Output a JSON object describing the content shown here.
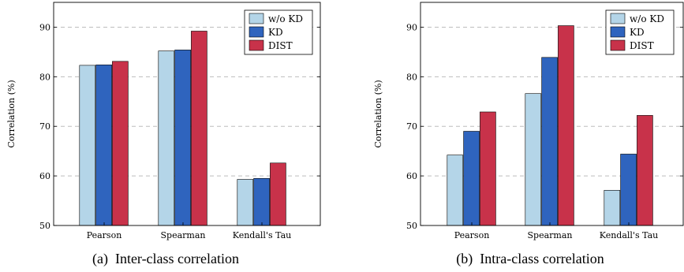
{
  "colors": {
    "w_o_kd": "#b4d5e8",
    "kd": "#2f64be",
    "dist": "#c8324a",
    "grid": "#bdbdbd"
  },
  "chart_data": [
    {
      "type": "bar",
      "caption": "(a)  Inter-class correlation",
      "ylabel": "Correlation (%)",
      "categories": [
        "Pearson",
        "Spearman",
        "Kendall's Tau"
      ],
      "ylim": [
        50,
        95
      ],
      "yticks": [
        50,
        60,
        70,
        80,
        90
      ],
      "grid": true,
      "legend": "top-right",
      "series": [
        {
          "name": "w/o KD",
          "color_key": "w_o_kd",
          "values": [
            82.3,
            85.2,
            59.3
          ]
        },
        {
          "name": "KD",
          "color_key": "kd",
          "values": [
            82.4,
            85.4,
            59.5
          ]
        },
        {
          "name": "DIST",
          "color_key": "dist",
          "values": [
            83.1,
            89.2,
            62.6
          ]
        }
      ]
    },
    {
      "type": "bar",
      "caption": "(b)  Intra-class correlation",
      "ylabel": "Correlation (%)",
      "categories": [
        "Pearson",
        "Spearman",
        "Kendall's Tau"
      ],
      "ylim": [
        50,
        95
      ],
      "yticks": [
        50,
        60,
        70,
        80,
        90
      ],
      "grid": true,
      "legend": "top-right",
      "series": [
        {
          "name": "w/o KD",
          "color_key": "w_o_kd",
          "values": [
            64.2,
            76.6,
            57.1
          ]
        },
        {
          "name": "KD",
          "color_key": "kd",
          "values": [
            69.0,
            83.9,
            64.4
          ]
        },
        {
          "name": "DIST",
          "color_key": "dist",
          "values": [
            72.9,
            90.3,
            72.2
          ]
        }
      ]
    }
  ]
}
